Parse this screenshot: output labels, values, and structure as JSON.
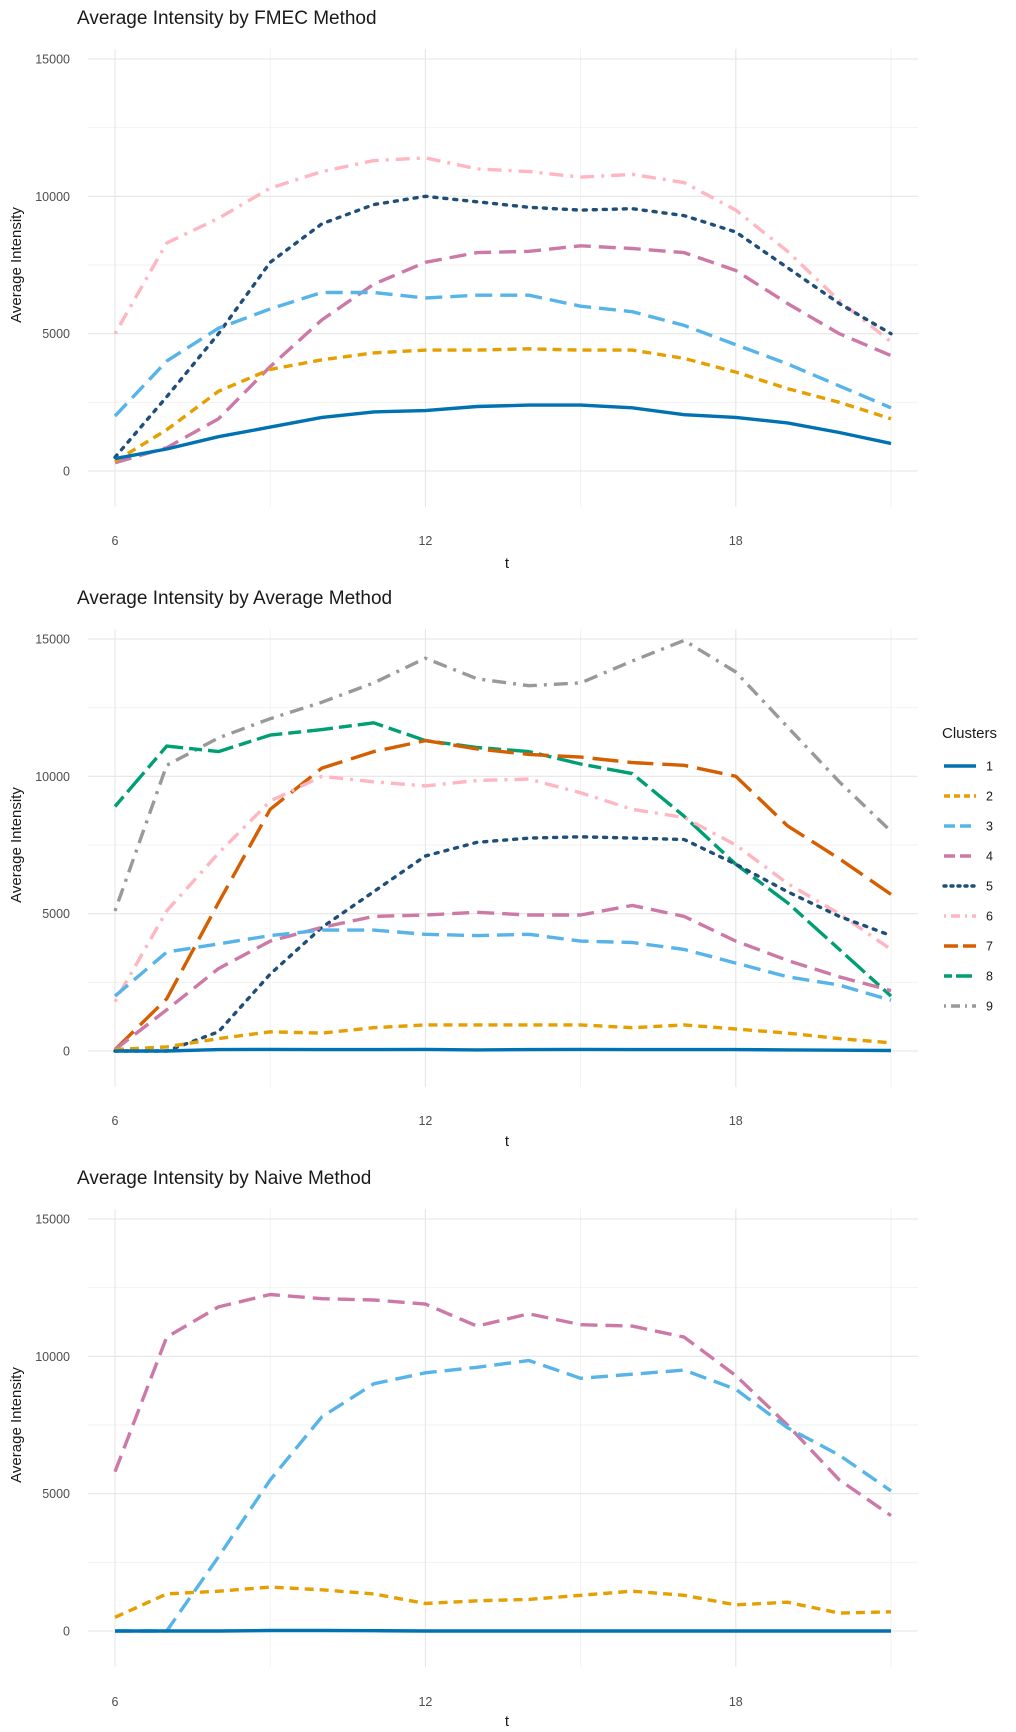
{
  "legend": {
    "title": "Clusters",
    "placement": "right",
    "entries": [
      {
        "label": "1",
        "color": "#0072B2",
        "dash": "solid"
      },
      {
        "label": "2",
        "color": "#E69F00",
        "dash": "dashed"
      },
      {
        "label": "3",
        "color": "#56B4E9",
        "dash": "longdash"
      },
      {
        "label": "4",
        "color": "#CC79A7",
        "dash": "longdash"
      },
      {
        "label": "5",
        "color": "#1F4E79",
        "dash": "dotted"
      },
      {
        "label": "6",
        "color": "#FFB6C1",
        "dash": "dotdash"
      },
      {
        "label": "7",
        "color": "#D55E00",
        "dash": "verylongdash"
      },
      {
        "label": "8",
        "color": "#009E73",
        "dash": "twodash"
      },
      {
        "label": "9",
        "color": "#999999",
        "dash": "dotdash"
      }
    ]
  },
  "chart_data": [
    {
      "type": "line",
      "title": "Average Intensity by FMEC Method",
      "xlabel": "t",
      "ylabel": "Average Intensity",
      "xlim": [
        6,
        21
      ],
      "ylim": [
        0,
        15000
      ],
      "x_ticks": [
        6,
        12,
        18
      ],
      "y_ticks": [
        0,
        5000,
        10000,
        15000
      ],
      "grid": true,
      "x": [
        6,
        7,
        8,
        9,
        10,
        11,
        12,
        13,
        14,
        15,
        16,
        17,
        18,
        19,
        20,
        21
      ],
      "series": [
        {
          "name": "1",
          "values": [
            450,
            800,
            1250,
            1600,
            1950,
            2150,
            2200,
            2350,
            2400,
            2400,
            2300,
            2050,
            1950,
            1750,
            1400,
            1000
          ]
        },
        {
          "name": "2",
          "values": [
            350,
            1500,
            2900,
            3700,
            4050,
            4300,
            4400,
            4400,
            4450,
            4400,
            4400,
            4100,
            3600,
            3000,
            2500,
            1900
          ]
        },
        {
          "name": "3",
          "values": [
            2000,
            4000,
            5200,
            5900,
            6500,
            6500,
            6300,
            6400,
            6400,
            6000,
            5800,
            5300,
            4600,
            3900,
            3100,
            2300
          ]
        },
        {
          "name": "4",
          "values": [
            300,
            850,
            1900,
            3800,
            5500,
            6800,
            7600,
            7950,
            8000,
            8200,
            8100,
            7950,
            7300,
            6100,
            5000,
            4200
          ]
        },
        {
          "name": "5",
          "values": [
            500,
            2700,
            5000,
            7600,
            9000,
            9700,
            10000,
            9800,
            9600,
            9500,
            9550,
            9300,
            8700,
            7400,
            6100,
            5000
          ]
        },
        {
          "name": "6",
          "values": [
            5000,
            8300,
            9200,
            10300,
            10900,
            11300,
            11400,
            11000,
            10900,
            10700,
            10800,
            10500,
            9500,
            8000,
            6200,
            4700
          ]
        }
      ]
    },
    {
      "type": "line",
      "title": "Average Intensity by Average Method",
      "xlabel": "t",
      "ylabel": "Average Intensity",
      "xlim": [
        6,
        21
      ],
      "ylim": [
        0,
        15000
      ],
      "x_ticks": [
        6,
        12,
        18
      ],
      "y_ticks": [
        0,
        5000,
        10000,
        15000
      ],
      "grid": true,
      "x": [
        6,
        7,
        8,
        9,
        10,
        11,
        12,
        13,
        14,
        15,
        16,
        17,
        18,
        19,
        20,
        21
      ],
      "series": [
        {
          "name": "1",
          "values": [
            0,
            0,
            50,
            60,
            50,
            50,
            60,
            40,
            50,
            60,
            50,
            50,
            50,
            40,
            30,
            20
          ]
        },
        {
          "name": "2",
          "values": [
            50,
            150,
            450,
            700,
            650,
            850,
            950,
            950,
            950,
            950,
            850,
            950,
            800,
            650,
            450,
            300
          ]
        },
        {
          "name": "3",
          "values": [
            2000,
            3600,
            3900,
            4200,
            4400,
            4400,
            4250,
            4200,
            4250,
            4000,
            3950,
            3700,
            3200,
            2700,
            2400,
            1850
          ]
        },
        {
          "name": "4",
          "values": [
            50,
            1500,
            3000,
            4000,
            4500,
            4900,
            4950,
            5050,
            4950,
            4950,
            5300,
            4900,
            4000,
            3300,
            2700,
            2200
          ]
        },
        {
          "name": "5",
          "values": [
            0,
            0,
            700,
            2800,
            4500,
            5800,
            7100,
            7600,
            7750,
            7800,
            7750,
            7700,
            6800,
            5800,
            4900,
            4200
          ]
        },
        {
          "name": "6",
          "values": [
            1800,
            5100,
            7200,
            9100,
            10000,
            9800,
            9650,
            9850,
            9900,
            9400,
            8800,
            8500,
            7500,
            6100,
            5000,
            3700
          ]
        },
        {
          "name": "7",
          "values": [
            50,
            1900,
            5400,
            8800,
            10300,
            10900,
            11300,
            11000,
            10800,
            10700,
            10500,
            10400,
            10000,
            8200,
            7000,
            5700
          ]
        },
        {
          "name": "8",
          "values": [
            8900,
            11100,
            10900,
            11500,
            11700,
            11950,
            11300,
            11050,
            10900,
            10450,
            10100,
            8550,
            6800,
            5400,
            3700,
            2000
          ]
        },
        {
          "name": "9",
          "values": [
            5100,
            10400,
            11400,
            12100,
            12700,
            13400,
            14300,
            13550,
            13300,
            13400,
            14200,
            14950,
            13800,
            11800,
            9800,
            8000
          ]
        }
      ]
    },
    {
      "type": "line",
      "title": "Average Intensity by Naive Method",
      "xlabel": "t",
      "ylabel": "Average Intensity",
      "xlim": [
        6,
        21
      ],
      "ylim": [
        0,
        15000
      ],
      "x_ticks": [
        6,
        12,
        18
      ],
      "y_ticks": [
        0,
        5000,
        10000,
        15000
      ],
      "grid": true,
      "x": [
        6,
        7,
        8,
        9,
        10,
        11,
        12,
        13,
        14,
        15,
        16,
        17,
        18,
        19,
        20,
        21
      ],
      "series": [
        {
          "name": "1",
          "values": [
            0,
            0,
            0,
            20,
            20,
            10,
            0,
            0,
            0,
            0,
            0,
            0,
            0,
            0,
            0,
            0
          ]
        },
        {
          "name": "2",
          "values": [
            500,
            1350,
            1450,
            1600,
            1500,
            1350,
            1000,
            1100,
            1150,
            1300,
            1450,
            1300,
            950,
            1050,
            650,
            700
          ]
        },
        {
          "name": "3",
          "values": [
            0,
            0,
            2700,
            5500,
            7800,
            9000,
            9400,
            9600,
            9850,
            9200,
            9350,
            9500,
            8800,
            7400,
            6400,
            5100
          ]
        },
        {
          "name": "4",
          "values": [
            5800,
            10700,
            11800,
            12250,
            12100,
            12050,
            11900,
            11100,
            11550,
            11150,
            11100,
            10700,
            9300,
            7500,
            5500,
            4200
          ]
        }
      ]
    }
  ]
}
